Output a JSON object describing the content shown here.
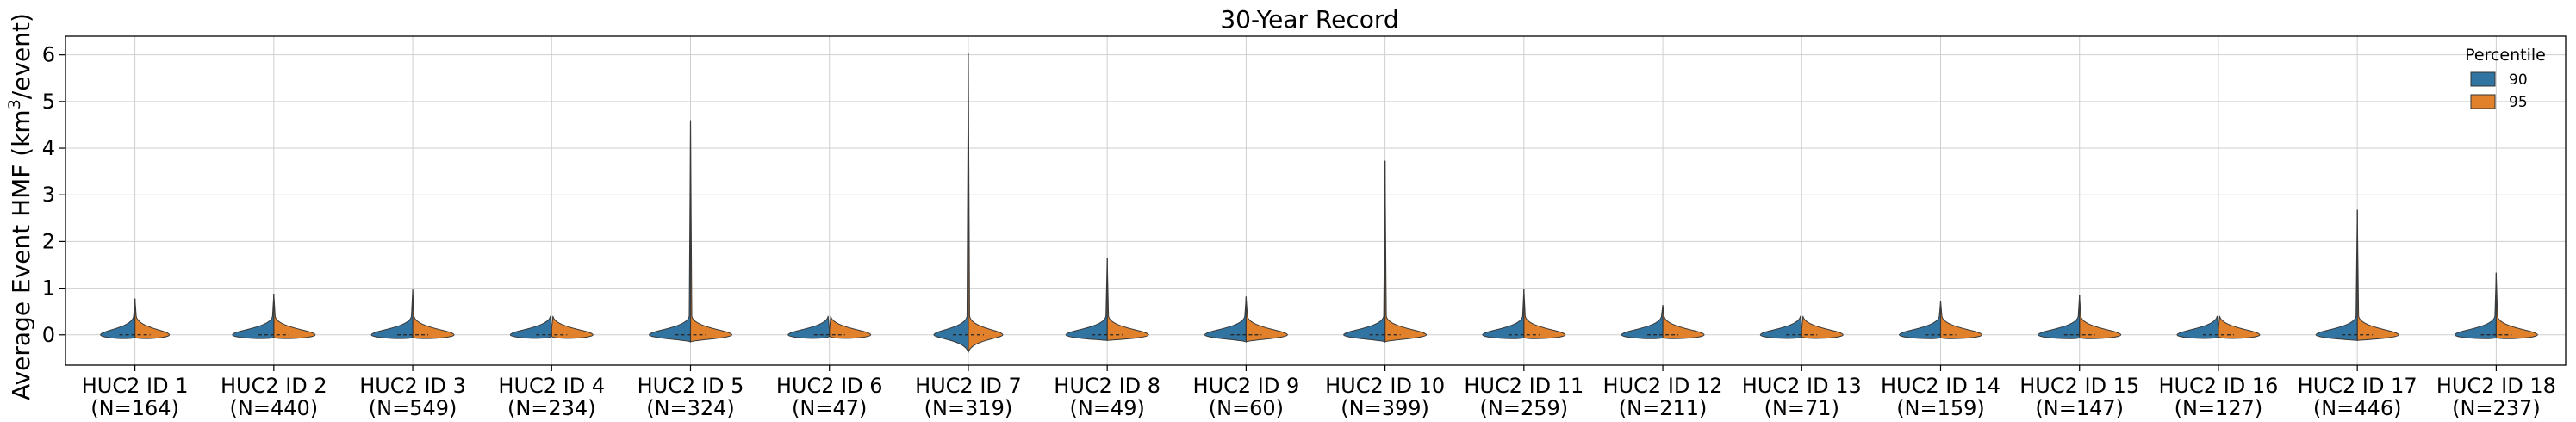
{
  "chart_data": {
    "type": "violin",
    "title": "30-Year Record",
    "ylabel_pre": "Average Event HMF (km",
    "ylabel_sup": "3",
    "ylabel_post": "/event)",
    "xlabel": "",
    "ylim": [
      -0.65,
      6.4
    ],
    "yticks": [
      0,
      1,
      2,
      3,
      4,
      5,
      6
    ],
    "grid": true,
    "legend": {
      "title": "Percentile",
      "position": "top-right",
      "entries": [
        {
          "name": "90",
          "color": "#3274a1"
        },
        {
          "name": "95",
          "color": "#e1812c"
        }
      ]
    },
    "categories": [
      {
        "label": "HUC2 ID 1",
        "n": "(N=164)",
        "max": 0.78,
        "min": -0.05,
        "halfwidth": 0.01
      },
      {
        "label": "HUC2 ID 2",
        "n": "(N=440)",
        "max": 0.88,
        "min": -0.05,
        "halfwidth": 0.012
      },
      {
        "label": "HUC2 ID 3",
        "n": "(N=549)",
        "max": 0.97,
        "min": -0.05,
        "halfwidth": 0.012
      },
      {
        "label": "HUC2 ID 4",
        "n": "(N=234)",
        "max": 0.12,
        "min": -0.03,
        "halfwidth": 0.022
      },
      {
        "label": "HUC2 ID 5",
        "n": "(N=324)",
        "max": 4.6,
        "min": -0.15,
        "halfwidth": 0.012
      },
      {
        "label": "HUC2 ID 6",
        "n": "(N=47)",
        "max": 0.08,
        "min": -0.03,
        "halfwidth": 0.03
      },
      {
        "label": "HUC2 ID 7",
        "n": "(N=319)",
        "max": 6.05,
        "min": -0.38,
        "halfwidth": 0.01
      },
      {
        "label": "HUC2 ID 8",
        "n": "(N=49)",
        "max": 1.64,
        "min": -0.12,
        "halfwidth": 0.012
      },
      {
        "label": "HUC2 ID 9",
        "n": "(N=60)",
        "max": 0.82,
        "min": -0.15,
        "halfwidth": 0.015
      },
      {
        "label": "HUC2 ID 10",
        "n": "(N=399)",
        "max": 3.73,
        "min": -0.15,
        "halfwidth": 0.012
      },
      {
        "label": "HUC2 ID 11",
        "n": "(N=259)",
        "max": 0.98,
        "min": -0.06,
        "halfwidth": 0.012
      },
      {
        "label": "HUC2 ID 12",
        "n": "(N=211)",
        "max": 0.64,
        "min": -0.06,
        "halfwidth": 0.012
      },
      {
        "label": "HUC2 ID 13",
        "n": "(N=71)",
        "max": 0.12,
        "min": -0.04,
        "halfwidth": 0.025
      },
      {
        "label": "HUC2 ID 14",
        "n": "(N=159)",
        "max": 0.72,
        "min": -0.06,
        "halfwidth": 0.012
      },
      {
        "label": "HUC2 ID 15",
        "n": "(N=147)",
        "max": 0.85,
        "min": -0.06,
        "halfwidth": 0.012
      },
      {
        "label": "HUC2 ID 16",
        "n": "(N=127)",
        "max": 0.12,
        "min": -0.04,
        "halfwidth": 0.022
      },
      {
        "label": "HUC2 ID 17",
        "n": "(N=446)",
        "max": 2.68,
        "min": -0.12,
        "halfwidth": 0.012
      },
      {
        "label": "HUC2 ID 18",
        "n": "(N=237)",
        "max": 1.33,
        "min": -0.06,
        "halfwidth": 0.012
      }
    ]
  }
}
